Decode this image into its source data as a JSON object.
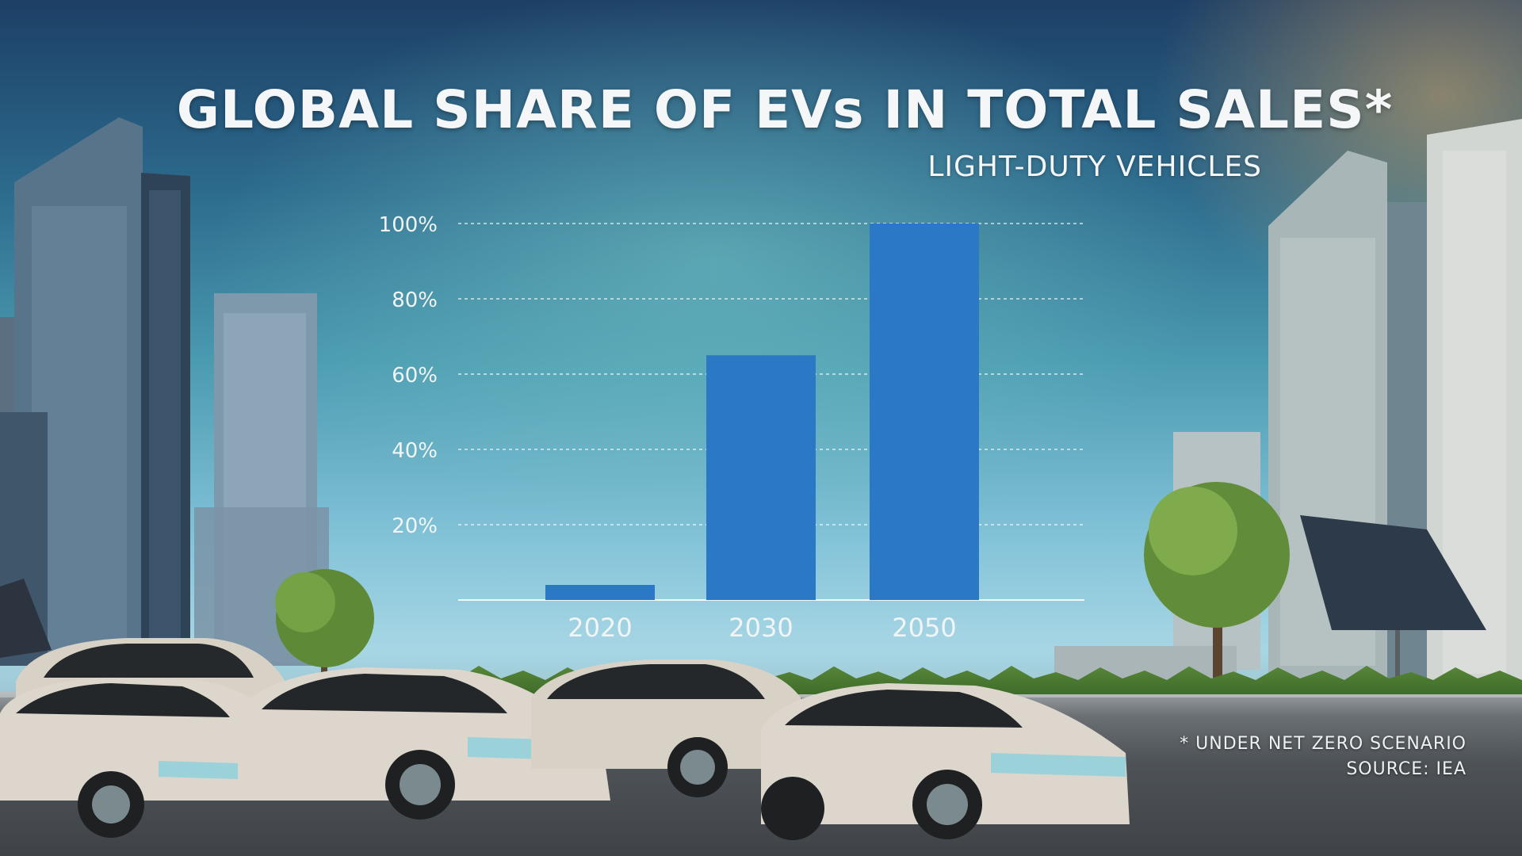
{
  "chart_data": {
    "type": "bar",
    "title": "GLOBAL SHARE OF EVs IN TOTAL SALES*",
    "subtitle": "LIGHT-DUTY VEHICLES",
    "categories": [
      "2020",
      "2030",
      "2050"
    ],
    "values": [
      4,
      65,
      100
    ],
    "ylim": [
      0,
      100
    ],
    "yticks": [
      20,
      40,
      60,
      80,
      100
    ],
    "ytick_labels": [
      "20%",
      "40%",
      "60%",
      "80%",
      "100%"
    ],
    "grid": true,
    "bar_color": "#2a78c6"
  },
  "footnote": "* UNDER NET ZERO SCENARIO",
  "source": "SOURCE: IEA"
}
